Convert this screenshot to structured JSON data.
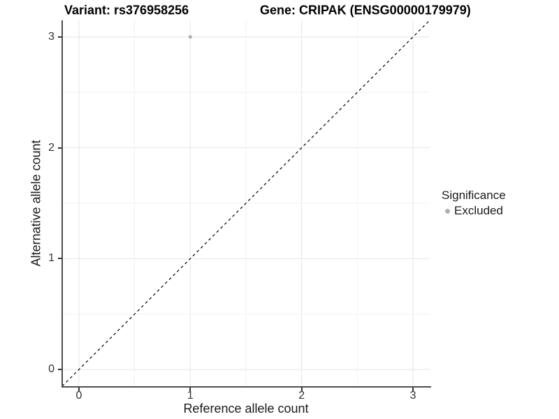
{
  "chart_data": {
    "type": "scatter",
    "title_left": "Variant: rs376958256",
    "title_right": "Gene: CRIPAK (ENSG00000179979)",
    "xlabel": "Reference allele count",
    "ylabel": "Alternative allele count",
    "xlim": [
      -0.15,
      3.15
    ],
    "ylim": [
      -0.15,
      3.15
    ],
    "x_ticks": [
      0,
      1,
      2,
      3
    ],
    "y_ticks": [
      0,
      1,
      2,
      3
    ],
    "x_minor_ticks": [
      0.5,
      1.5,
      2.5
    ],
    "y_minor_ticks": [
      0.5,
      1.5,
      2.5
    ],
    "grid": "major+minor",
    "points": [
      {
        "x": 1,
        "y": 3,
        "series": "Excluded"
      }
    ],
    "reference_line": {
      "slope": 1,
      "intercept": 0,
      "style": "dashed",
      "color": "#000000"
    },
    "legend": {
      "position": "right",
      "title": "Significance",
      "items": [
        {
          "label": "Excluded",
          "color": "#b0b0b0"
        }
      ]
    },
    "colors": {
      "point_excluded": "#b0b0b0",
      "grid_major": "#e4e4e4",
      "grid_minor": "#f2f2f2",
      "axis_line": "#4d4d4d",
      "tick_text": "#333333",
      "title_text": "#000000"
    }
  }
}
